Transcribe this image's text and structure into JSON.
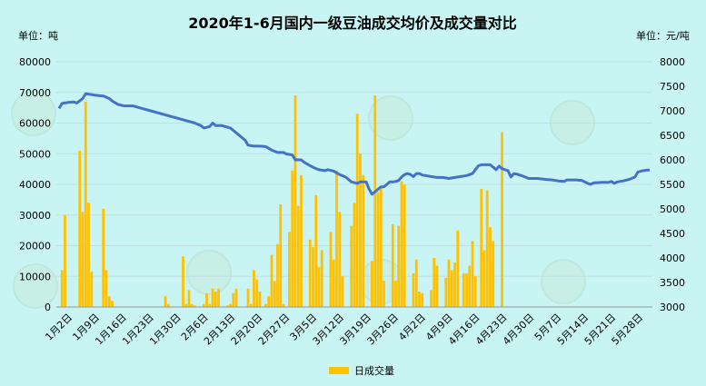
{
  "chart_data": {
    "type": "bar+line",
    "title": "2020年1-6月国内一级豆油成交均价及成交量对比",
    "y_left_unit": "单位：吨",
    "y_right_unit": "单位：元/吨",
    "y_left_ticks": [
      "0",
      "10000",
      "20000",
      "30000",
      "40000",
      "50000",
      "60000",
      "70000",
      "80000"
    ],
    "y_right_ticks": [
      "3000",
      "3500",
      "4000",
      "4500",
      "5000",
      "5500",
      "6000",
      "6500",
      "7000",
      "7500",
      "8000"
    ],
    "y_left_range": [
      0,
      80000
    ],
    "y_right_range": [
      3000,
      8000
    ],
    "x_ticks": [
      "1月2日",
      "1月9日",
      "1月16日",
      "1月23日",
      "1月30日",
      "2月6日",
      "2月13日",
      "2月20日",
      "2月27日",
      "3月5日",
      "3月12日",
      "3月19日",
      "3月26日",
      "4月2日",
      "4月9日",
      "4月16日",
      "4月23日",
      "4月30日",
      "5月7日",
      "5月14日",
      "5月21日",
      "5月28日"
    ],
    "legend": "日成交量",
    "grid": true,
    "legend_position": "bottom",
    "bar_color": "#FFC000",
    "line_color": "#4472C4",
    "volume": [
      [
        1,
        12000
      ],
      [
        2,
        30000
      ],
      [
        7,
        51000
      ],
      [
        8,
        31000
      ],
      [
        9,
        67000
      ],
      [
        10,
        34000
      ],
      [
        11,
        11500
      ],
      [
        15,
        32000
      ],
      [
        16,
        12000
      ],
      [
        17,
        3500
      ],
      [
        18,
        2000
      ],
      [
        36,
        3500
      ],
      [
        37,
        1000
      ],
      [
        42,
        16500
      ],
      [
        43,
        1000
      ],
      [
        44,
        5500
      ],
      [
        45,
        1000
      ],
      [
        46,
        500
      ],
      [
        49,
        1000
      ],
      [
        50,
        4500
      ],
      [
        51,
        1000
      ],
      [
        52,
        6000
      ],
      [
        53,
        5000
      ],
      [
        54,
        6000
      ],
      [
        57,
        500
      ],
      [
        58,
        1000
      ],
      [
        59,
        4500
      ],
      [
        60,
        6000
      ],
      [
        64,
        6000
      ],
      [
        65,
        1000
      ],
      [
        66,
        12000
      ],
      [
        67,
        9000
      ],
      [
        68,
        5000
      ],
      [
        70,
        1000
      ],
      [
        71,
        3500
      ],
      [
        72,
        17000
      ],
      [
        73,
        8500
      ],
      [
        74,
        20500
      ],
      [
        75,
        33500
      ],
      [
        76,
        1000
      ],
      [
        78,
        24500
      ],
      [
        79,
        44500
      ],
      [
        80,
        69000
      ],
      [
        81,
        33000
      ],
      [
        82,
        43000
      ],
      [
        85,
        22000
      ],
      [
        86,
        19500
      ],
      [
        87,
        36500
      ],
      [
        88,
        13000
      ],
      [
        89,
        18500
      ],
      [
        92,
        24500
      ],
      [
        93,
        15500
      ],
      [
        94,
        44500
      ],
      [
        95,
        31000
      ],
      [
        96,
        10000
      ],
      [
        99,
        26500
      ],
      [
        100,
        34000
      ],
      [
        101,
        63000
      ],
      [
        102,
        50000
      ],
      [
        103,
        43000
      ],
      [
        106,
        15000
      ],
      [
        107,
        69000
      ],
      [
        108,
        37500
      ],
      [
        109,
        39500
      ],
      [
        110,
        8500
      ],
      [
        113,
        27000
      ],
      [
        114,
        8500
      ],
      [
        115,
        26500
      ],
      [
        116,
        41000
      ],
      [
        117,
        40000
      ],
      [
        120,
        11000
      ],
      [
        121,
        15500
      ],
      [
        122,
        5000
      ],
      [
        123,
        4500
      ],
      [
        126,
        5500
      ],
      [
        127,
        16000
      ],
      [
        128,
        13500
      ],
      [
        131,
        9500
      ],
      [
        132,
        15500
      ],
      [
        133,
        12000
      ],
      [
        134,
        14500
      ],
      [
        135,
        25000
      ],
      [
        137,
        11000
      ],
      [
        138,
        11000
      ],
      [
        139,
        13500
      ],
      [
        140,
        21500
      ],
      [
        141,
        10000
      ],
      [
        143,
        38500
      ],
      [
        144,
        18500
      ],
      [
        145,
        38000
      ],
      [
        146,
        26000
      ],
      [
        147,
        21500
      ],
      [
        150,
        57000
      ]
    ],
    "avg_price": [
      [
        0,
        7050
      ],
      [
        1,
        7150
      ],
      [
        3,
        7170
      ],
      [
        5,
        7180
      ],
      [
        6,
        7160
      ],
      [
        8,
        7250
      ],
      [
        9,
        7350
      ],
      [
        12,
        7320
      ],
      [
        15,
        7300
      ],
      [
        17,
        7250
      ],
      [
        18,
        7200
      ],
      [
        20,
        7130
      ],
      [
        22,
        7100
      ],
      [
        25,
        7100
      ],
      [
        28,
        7050
      ],
      [
        31,
        7000
      ],
      [
        34,
        6950
      ],
      [
        37,
        6900
      ],
      [
        40,
        6850
      ],
      [
        43,
        6800
      ],
      [
        46,
        6750
      ],
      [
        48,
        6700
      ],
      [
        49,
        6650
      ],
      [
        51,
        6680
      ],
      [
        52,
        6750
      ],
      [
        53,
        6700
      ],
      [
        55,
        6700
      ],
      [
        58,
        6650
      ],
      [
        61,
        6500
      ],
      [
        63,
        6400
      ],
      [
        64,
        6300
      ],
      [
        66,
        6280
      ],
      [
        68,
        6280
      ],
      [
        70,
        6270
      ],
      [
        72,
        6200
      ],
      [
        74,
        6150
      ],
      [
        76,
        6150
      ],
      [
        77,
        6120
      ],
      [
        79,
        6100
      ],
      [
        80,
        6000
      ],
      [
        82,
        6000
      ],
      [
        83,
        5950
      ],
      [
        85,
        5880
      ],
      [
        87,
        5820
      ],
      [
        88,
        5800
      ],
      [
        90,
        5780
      ],
      [
        91,
        5800
      ],
      [
        93,
        5770
      ],
      [
        95,
        5700
      ],
      [
        97,
        5650
      ],
      [
        99,
        5550
      ],
      [
        101,
        5520
      ],
      [
        102,
        5550
      ],
      [
        104,
        5550
      ],
      [
        105,
        5400
      ],
      [
        106,
        5300
      ],
      [
        107,
        5350
      ],
      [
        108,
        5400
      ],
      [
        109,
        5450
      ],
      [
        110,
        5450
      ],
      [
        111,
        5500
      ],
      [
        112,
        5550
      ],
      [
        113,
        5550
      ],
      [
        114,
        5560
      ],
      [
        115,
        5580
      ],
      [
        116,
        5650
      ],
      [
        117,
        5700
      ],
      [
        118,
        5720
      ],
      [
        119,
        5700
      ],
      [
        120,
        5660
      ],
      [
        121,
        5720
      ],
      [
        122,
        5720
      ],
      [
        123,
        5690
      ],
      [
        125,
        5670
      ],
      [
        126,
        5660
      ],
      [
        128,
        5640
      ],
      [
        130,
        5640
      ],
      [
        132,
        5620
      ],
      [
        134,
        5640
      ],
      [
        136,
        5660
      ],
      [
        138,
        5680
      ],
      [
        140,
        5720
      ],
      [
        141,
        5800
      ],
      [
        142,
        5880
      ],
      [
        143,
        5900
      ],
      [
        146,
        5900
      ],
      [
        147,
        5850
      ],
      [
        148,
        5800
      ],
      [
        149,
        5870
      ],
      [
        150,
        5820
      ],
      [
        151,
        5800
      ],
      [
        152,
        5780
      ],
      [
        153,
        5650
      ],
      [
        154,
        5720
      ],
      [
        155,
        5710
      ],
      [
        157,
        5670
      ],
      [
        159,
        5620
      ],
      [
        162,
        5620
      ],
      [
        165,
        5600
      ],
      [
        167,
        5590
      ],
      [
        169,
        5570
      ],
      [
        171,
        5560
      ],
      [
        172,
        5590
      ],
      [
        175,
        5590
      ],
      [
        177,
        5580
      ],
      [
        179,
        5520
      ],
      [
        180,
        5500
      ],
      [
        181,
        5530
      ],
      [
        184,
        5540
      ],
      [
        186,
        5540
      ],
      [
        187,
        5560
      ],
      [
        188,
        5520
      ],
      [
        189,
        5550
      ],
      [
        191,
        5570
      ],
      [
        193,
        5600
      ],
      [
        195,
        5650
      ],
      [
        196,
        5750
      ],
      [
        197,
        5770
      ],
      [
        199,
        5790
      ],
      [
        200,
        5790
      ]
    ]
  }
}
